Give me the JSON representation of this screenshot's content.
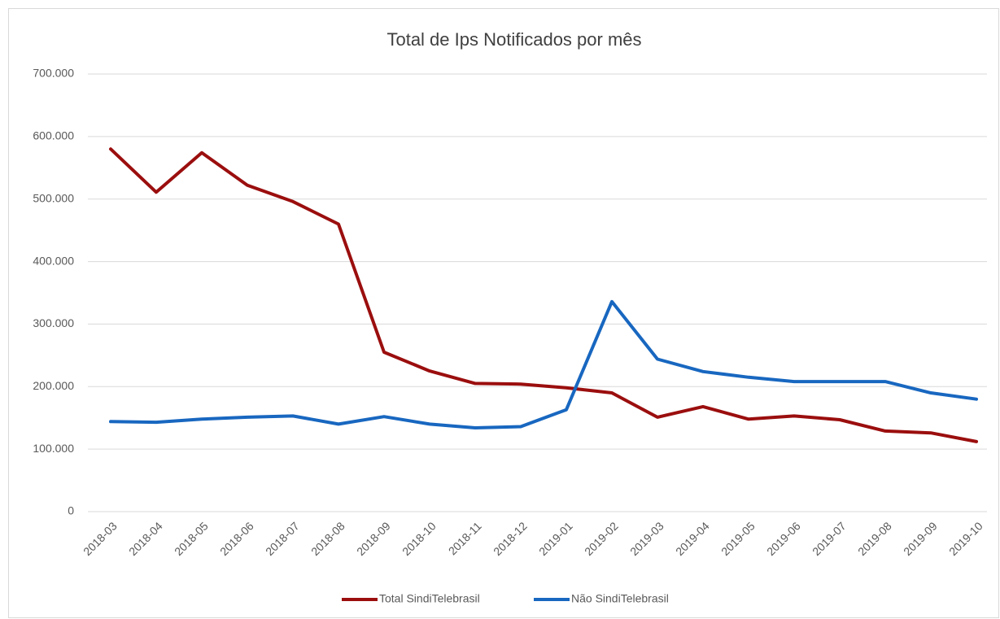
{
  "chart_data": {
    "type": "line",
    "title": "Total de Ips Notificados por mês",
    "categories": [
      "2018-03",
      "2018-04",
      "2018-05",
      "2018-06",
      "2018-07",
      "2018-08",
      "2018-09",
      "2018-10",
      "2018-11",
      "2018-12",
      "2019-01",
      "2019-02",
      "2019-03",
      "2019-04",
      "2019-05",
      "2019-06",
      "2019-07",
      "2019-08",
      "2019-09",
      "2019-10"
    ],
    "series": [
      {
        "name": "Total SindiTelebrasil",
        "color": "#9b0e0e",
        "values": [
          580000,
          511000,
          574000,
          522000,
          496000,
          460000,
          255000,
          225000,
          205000,
          204000,
          198000,
          190000,
          151000,
          168000,
          148000,
          153000,
          147000,
          129000,
          126000,
          112000
        ]
      },
      {
        "name": "Não SindiTelebrasil",
        "color": "#1867c0",
        "values": [
          144000,
          143000,
          148000,
          151000,
          153000,
          140000,
          152000,
          140000,
          134000,
          136000,
          163000,
          336000,
          244000,
          224000,
          215000,
          208000,
          208000,
          208000,
          190000,
          180000
        ]
      }
    ],
    "ylim": [
      0,
      700000
    ],
    "yticks": [
      0,
      {
        "value": 100000,
        "label": "100.000"
      },
      {
        "value": 200000,
        "label": "200.000"
      },
      {
        "value": 300000,
        "label": "300.000"
      },
      {
        "value": 400000,
        "label": "400.000"
      },
      {
        "value": 500000,
        "label": "500.000"
      },
      {
        "value": 600000,
        "label": "600.000"
      },
      {
        "value": 700000,
        "label": "700.000"
      }
    ],
    "grid": true,
    "legend": "bottom"
  }
}
